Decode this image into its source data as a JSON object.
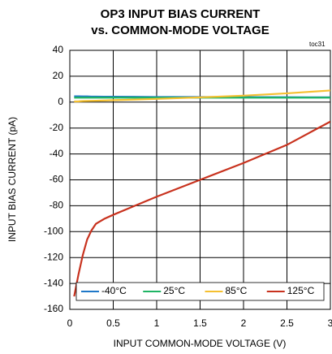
{
  "chart_data": {
    "type": "line",
    "title": "OP3 INPUT BIAS CURRENT",
    "subtitle": "vs. COMMON-MODE VOLTAGE",
    "annotation": "toc31",
    "xlabel": "INPUT COMMON-MODE VOLTAGE (V)",
    "ylabel": "INPUT BIAS CURRENT (pA)",
    "x": [
      0.05,
      0.1,
      0.15,
      0.2,
      0.25,
      0.3,
      0.4,
      0.5,
      0.75,
      1.0,
      1.5,
      2.0,
      2.5,
      3.0
    ],
    "series": [
      {
        "name": "-40°C",
        "color": "#1f78c8",
        "values": [
          4.5,
          4.5,
          4.4,
          4.4,
          4.3,
          4.3,
          4.2,
          4.2,
          4.1,
          4,
          4,
          3.9,
          3.8,
          3.7
        ]
      },
      {
        "name": "25°C",
        "color": "#1fb464",
        "values": [
          3.5,
          3.5,
          3.5,
          3.5,
          3.5,
          3.5,
          3.5,
          3.5,
          3.5,
          3.5,
          3.5,
          3.5,
          3.5,
          3.5
        ]
      },
      {
        "name": "85°C",
        "color": "#f5c030",
        "values": [
          0.5,
          0.6,
          0.8,
          0.9,
          1,
          1.1,
          1.3,
          1.5,
          2,
          2.5,
          3.7,
          5,
          6.8,
          9
        ]
      },
      {
        "name": "125°C",
        "color": "#c8321e",
        "values": [
          -150,
          -133,
          -118,
          -106,
          -99,
          -94,
          -90,
          -87,
          -80,
          -73,
          -60,
          -47,
          -33,
          -15
        ]
      }
    ],
    "xlim": [
      0,
      3
    ],
    "xticks": [
      0,
      0.5,
      1,
      1.5,
      2,
      2.5,
      3
    ],
    "ylim": [
      -160,
      40
    ],
    "yticks": [
      40,
      20,
      0,
      -20,
      -40,
      -60,
      -80,
      -100,
      -120,
      -140,
      -160
    ],
    "grid": true,
    "legend": "lower center"
  }
}
